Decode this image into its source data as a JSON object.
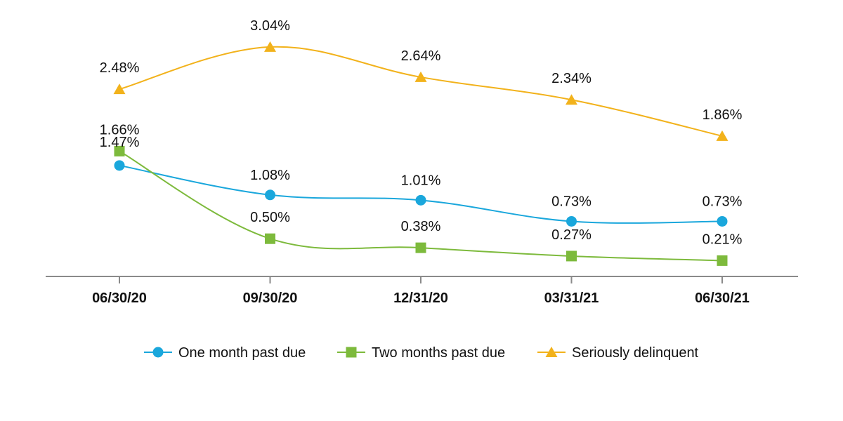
{
  "chart_data": {
    "type": "line",
    "title": "",
    "xlabel": "",
    "ylabel": "",
    "categories": [
      "06/30/20",
      "09/30/20",
      "12/31/20",
      "03/31/21",
      "06/30/21"
    ],
    "ylim": [
      0,
      3.5
    ],
    "grid": false,
    "legend_position": "bottom",
    "series": [
      {
        "name": "One month past due",
        "marker": "circle",
        "color": "#1aa7dc",
        "values": [
          1.47,
          1.08,
          1.01,
          0.73,
          0.73
        ],
        "labels": [
          "1.47%",
          "1.08%",
          "1.01%",
          "0.73%",
          "0.73%"
        ]
      },
      {
        "name": "Two months past due",
        "marker": "square",
        "color": "#7dba3c",
        "values": [
          1.66,
          0.5,
          0.38,
          0.27,
          0.21
        ],
        "labels": [
          "1.66%",
          "0.50%",
          "0.38%",
          "0.27%",
          "0.21%"
        ]
      },
      {
        "name": "Seriously delinquent",
        "marker": "triangle",
        "color": "#f2b21b",
        "values": [
          2.48,
          3.04,
          2.64,
          2.34,
          1.86
        ],
        "labels": [
          "2.48%",
          "3.04%",
          "2.64%",
          "2.34%",
          "1.86%"
        ]
      }
    ]
  }
}
